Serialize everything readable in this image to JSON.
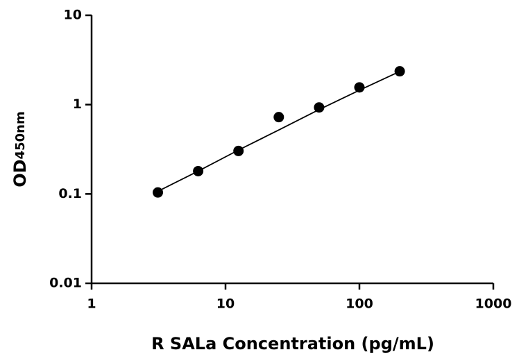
{
  "chart_data": {
    "type": "scatter",
    "xlabel": "R SALa Concentration (pg/mL)",
    "ylabel": "OD",
    "ylabel_sub": "450nm",
    "xscale": "log",
    "yscale": "log",
    "xlim": [
      1,
      1000
    ],
    "ylim": [
      0.01,
      10
    ],
    "xticks": [
      1,
      10,
      100,
      1000
    ],
    "yticks": [
      0.01,
      0.1,
      1,
      10
    ],
    "color": "#000000",
    "x": [
      3.125,
      6.25,
      12.5,
      25,
      50,
      100,
      200
    ],
    "values": [
      0.104,
      0.18,
      0.303,
      0.725,
      0.93,
      1.56,
      2.36
    ],
    "fit": {
      "x": [
        3.125,
        6.25,
        12.5,
        25,
        50,
        100,
        200
      ],
      "values": [
        0.107,
        0.18,
        0.31,
        0.52,
        0.88,
        1.45,
        2.35
      ]
    }
  }
}
